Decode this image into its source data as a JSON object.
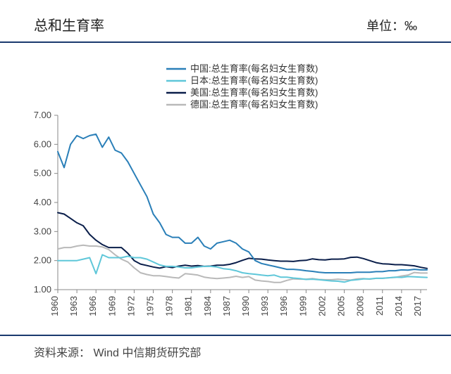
{
  "header": {
    "title": "总和生育率",
    "unit": "单位：‰"
  },
  "footer": {
    "source": "资料来源：  Wind  中信期货研究部"
  },
  "chart": {
    "type": "line",
    "background_color": "#ffffff",
    "axis_color": "#888888",
    "axis_width": 1,
    "ylim": [
      1.0,
      7.0
    ],
    "yticks": [
      1.0,
      2.0,
      3.0,
      4.0,
      5.0,
      6.0,
      7.0
    ],
    "ytick_labels": [
      "1.00",
      "2.00",
      "3.00",
      "4.00",
      "5.00",
      "6.00",
      "7.00"
    ],
    "xlim": [
      1960,
      2018
    ],
    "xticks": [
      1960,
      1963,
      1966,
      1969,
      1972,
      1975,
      1978,
      1981,
      1984,
      1987,
      1990,
      1993,
      1996,
      1999,
      2002,
      2005,
      2008,
      2011,
      2014,
      2017
    ],
    "xtick_labels": [
      "1960",
      "1963",
      "1966",
      "1969",
      "1972",
      "1975",
      "1978",
      "1981",
      "1984",
      "1987",
      "1990",
      "1993",
      "1996",
      "1999",
      "2002",
      "2005",
      "2008",
      "2011",
      "2014",
      "2017"
    ],
    "xtick_rotation": -90,
    "axis_label_fontsize": 13,
    "line_width": 2,
    "legend": {
      "position": "top-center",
      "swatch_width": 28,
      "items": [
        {
          "key": "china",
          "label": "中国:总生育率(每名妇女生育数)"
        },
        {
          "key": "japan",
          "label": "日本:总生育率(每名妇女生育数)"
        },
        {
          "key": "usa",
          "label": "美国:总生育率(每名妇女生育数)"
        },
        {
          "key": "germany",
          "label": "德国:总生育率(每名妇女生育数)"
        }
      ]
    },
    "series": {
      "china": {
        "color": "#2a7fb8",
        "points": [
          [
            1960,
            5.75
          ],
          [
            1961,
            5.2
          ],
          [
            1962,
            6.0
          ],
          [
            1963,
            6.3
          ],
          [
            1964,
            6.2
          ],
          [
            1965,
            6.3
          ],
          [
            1966,
            6.35
          ],
          [
            1967,
            5.9
          ],
          [
            1968,
            6.25
          ],
          [
            1969,
            5.8
          ],
          [
            1970,
            5.7
          ],
          [
            1971,
            5.4
          ],
          [
            1972,
            5.0
          ],
          [
            1973,
            4.6
          ],
          [
            1974,
            4.2
          ],
          [
            1975,
            3.6
          ],
          [
            1976,
            3.3
          ],
          [
            1977,
            2.9
          ],
          [
            1978,
            2.8
          ],
          [
            1979,
            2.8
          ],
          [
            1980,
            2.6
          ],
          [
            1981,
            2.6
          ],
          [
            1982,
            2.8
          ],
          [
            1983,
            2.5
          ],
          [
            1984,
            2.4
          ],
          [
            1985,
            2.6
          ],
          [
            1986,
            2.65
          ],
          [
            1987,
            2.7
          ],
          [
            1988,
            2.6
          ],
          [
            1989,
            2.4
          ],
          [
            1990,
            2.3
          ],
          [
            1991,
            2.0
          ],
          [
            1992,
            1.9
          ],
          [
            1993,
            1.85
          ],
          [
            1994,
            1.8
          ],
          [
            1995,
            1.75
          ],
          [
            1996,
            1.7
          ],
          [
            1997,
            1.7
          ],
          [
            1998,
            1.68
          ],
          [
            1999,
            1.65
          ],
          [
            2000,
            1.63
          ],
          [
            2001,
            1.6
          ],
          [
            2002,
            1.58
          ],
          [
            2003,
            1.58
          ],
          [
            2004,
            1.58
          ],
          [
            2005,
            1.58
          ],
          [
            2006,
            1.58
          ],
          [
            2007,
            1.6
          ],
          [
            2008,
            1.6
          ],
          [
            2009,
            1.6
          ],
          [
            2010,
            1.62
          ],
          [
            2011,
            1.62
          ],
          [
            2012,
            1.65
          ],
          [
            2013,
            1.65
          ],
          [
            2014,
            1.68
          ],
          [
            2015,
            1.67
          ],
          [
            2016,
            1.7
          ],
          [
            2017,
            1.68
          ],
          [
            2018,
            1.68
          ]
        ]
      },
      "japan": {
        "color": "#5fc7d9",
        "points": [
          [
            1960,
            2.0
          ],
          [
            1961,
            2.0
          ],
          [
            1962,
            2.0
          ],
          [
            1963,
            2.0
          ],
          [
            1964,
            2.05
          ],
          [
            1965,
            2.1
          ],
          [
            1966,
            1.55
          ],
          [
            1967,
            2.2
          ],
          [
            1968,
            2.1
          ],
          [
            1969,
            2.1
          ],
          [
            1970,
            2.1
          ],
          [
            1971,
            2.15
          ],
          [
            1972,
            2.1
          ],
          [
            1973,
            2.1
          ],
          [
            1974,
            2.05
          ],
          [
            1975,
            1.95
          ],
          [
            1976,
            1.85
          ],
          [
            1977,
            1.8
          ],
          [
            1978,
            1.8
          ],
          [
            1979,
            1.78
          ],
          [
            1980,
            1.75
          ],
          [
            1981,
            1.75
          ],
          [
            1982,
            1.78
          ],
          [
            1983,
            1.8
          ],
          [
            1984,
            1.8
          ],
          [
            1985,
            1.78
          ],
          [
            1986,
            1.72
          ],
          [
            1987,
            1.7
          ],
          [
            1988,
            1.65
          ],
          [
            1989,
            1.58
          ],
          [
            1990,
            1.55
          ],
          [
            1991,
            1.53
          ],
          [
            1992,
            1.5
          ],
          [
            1993,
            1.48
          ],
          [
            1994,
            1.5
          ],
          [
            1995,
            1.43
          ],
          [
            1996,
            1.43
          ],
          [
            1997,
            1.4
          ],
          [
            1998,
            1.38
          ],
          [
            1999,
            1.35
          ],
          [
            2000,
            1.36
          ],
          [
            2001,
            1.34
          ],
          [
            2002,
            1.32
          ],
          [
            2003,
            1.3
          ],
          [
            2004,
            1.29
          ],
          [
            2005,
            1.26
          ],
          [
            2006,
            1.32
          ],
          [
            2007,
            1.34
          ],
          [
            2008,
            1.37
          ],
          [
            2009,
            1.37
          ],
          [
            2010,
            1.39
          ],
          [
            2011,
            1.39
          ],
          [
            2012,
            1.41
          ],
          [
            2013,
            1.43
          ],
          [
            2014,
            1.42
          ],
          [
            2015,
            1.45
          ],
          [
            2016,
            1.44
          ],
          [
            2017,
            1.43
          ],
          [
            2018,
            1.42
          ]
        ]
      },
      "usa": {
        "color": "#0a1e4a",
        "points": [
          [
            1960,
            3.65
          ],
          [
            1961,
            3.6
          ],
          [
            1962,
            3.45
          ],
          [
            1963,
            3.3
          ],
          [
            1964,
            3.2
          ],
          [
            1965,
            2.9
          ],
          [
            1966,
            2.7
          ],
          [
            1967,
            2.55
          ],
          [
            1968,
            2.45
          ],
          [
            1969,
            2.45
          ],
          [
            1970,
            2.45
          ],
          [
            1971,
            2.25
          ],
          [
            1972,
            2.0
          ],
          [
            1973,
            1.88
          ],
          [
            1974,
            1.83
          ],
          [
            1975,
            1.78
          ],
          [
            1976,
            1.74
          ],
          [
            1977,
            1.79
          ],
          [
            1978,
            1.76
          ],
          [
            1979,
            1.81
          ],
          [
            1980,
            1.84
          ],
          [
            1981,
            1.81
          ],
          [
            1982,
            1.83
          ],
          [
            1983,
            1.8
          ],
          [
            1984,
            1.81
          ],
          [
            1985,
            1.84
          ],
          [
            1986,
            1.84
          ],
          [
            1987,
            1.87
          ],
          [
            1988,
            1.93
          ],
          [
            1989,
            2.01
          ],
          [
            1990,
            2.08
          ],
          [
            1991,
            2.06
          ],
          [
            1992,
            2.05
          ],
          [
            1993,
            2.02
          ],
          [
            1994,
            2.0
          ],
          [
            1995,
            1.98
          ],
          [
            1996,
            1.98
          ],
          [
            1997,
            1.97
          ],
          [
            1998,
            2.0
          ],
          [
            1999,
            2.01
          ],
          [
            2000,
            2.06
          ],
          [
            2001,
            2.03
          ],
          [
            2002,
            2.02
          ],
          [
            2003,
            2.05
          ],
          [
            2004,
            2.05
          ],
          [
            2005,
            2.06
          ],
          [
            2006,
            2.11
          ],
          [
            2007,
            2.12
          ],
          [
            2008,
            2.07
          ],
          [
            2009,
            2.0
          ],
          [
            2010,
            1.93
          ],
          [
            2011,
            1.89
          ],
          [
            2012,
            1.88
          ],
          [
            2013,
            1.86
          ],
          [
            2014,
            1.86
          ],
          [
            2015,
            1.84
          ],
          [
            2016,
            1.82
          ],
          [
            2017,
            1.77
          ],
          [
            2018,
            1.73
          ]
        ]
      },
      "germany": {
        "color": "#b9b9b9",
        "points": [
          [
            1960,
            2.4
          ],
          [
            1961,
            2.45
          ],
          [
            1962,
            2.45
          ],
          [
            1963,
            2.5
          ],
          [
            1964,
            2.53
          ],
          [
            1965,
            2.5
          ],
          [
            1966,
            2.5
          ],
          [
            1967,
            2.47
          ],
          [
            1968,
            2.38
          ],
          [
            1969,
            2.2
          ],
          [
            1970,
            2.05
          ],
          [
            1971,
            1.95
          ],
          [
            1972,
            1.75
          ],
          [
            1973,
            1.58
          ],
          [
            1974,
            1.52
          ],
          [
            1975,
            1.48
          ],
          [
            1976,
            1.48
          ],
          [
            1977,
            1.45
          ],
          [
            1978,
            1.42
          ],
          [
            1979,
            1.4
          ],
          [
            1980,
            1.55
          ],
          [
            1981,
            1.53
          ],
          [
            1982,
            1.5
          ],
          [
            1983,
            1.43
          ],
          [
            1984,
            1.4
          ],
          [
            1985,
            1.38
          ],
          [
            1986,
            1.4
          ],
          [
            1987,
            1.42
          ],
          [
            1988,
            1.46
          ],
          [
            1989,
            1.42
          ],
          [
            1990,
            1.45
          ],
          [
            1991,
            1.33
          ],
          [
            1992,
            1.3
          ],
          [
            1993,
            1.28
          ],
          [
            1994,
            1.25
          ],
          [
            1995,
            1.25
          ],
          [
            1996,
            1.32
          ],
          [
            1997,
            1.37
          ],
          [
            1998,
            1.36
          ],
          [
            1999,
            1.36
          ],
          [
            2000,
            1.38
          ],
          [
            2001,
            1.35
          ],
          [
            2002,
            1.34
          ],
          [
            2003,
            1.34
          ],
          [
            2004,
            1.36
          ],
          [
            2005,
            1.34
          ],
          [
            2006,
            1.33
          ],
          [
            2007,
            1.37
          ],
          [
            2008,
            1.38
          ],
          [
            2009,
            1.36
          ],
          [
            2010,
            1.39
          ],
          [
            2011,
            1.39
          ],
          [
            2012,
            1.41
          ],
          [
            2013,
            1.42
          ],
          [
            2014,
            1.47
          ],
          [
            2015,
            1.5
          ],
          [
            2016,
            1.59
          ],
          [
            2017,
            1.57
          ],
          [
            2018,
            1.57
          ]
        ]
      }
    }
  }
}
